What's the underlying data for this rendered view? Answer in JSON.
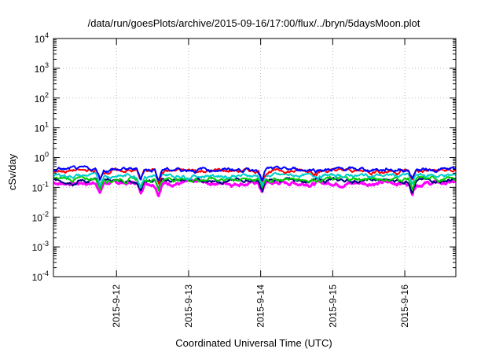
{
  "chart_data": {
    "type": "line",
    "title": "/data/run/goesPlots/archive/2015-09-16/17:00/flux/../bryn/5daysMoon.plot",
    "xlabel": "Coordinated Universal Time (UTC)",
    "ylabel": "cSv/day",
    "yscale": "log",
    "ylim": [
      0.0001,
      10000
    ],
    "xlim": [
      "2015-09-11 03:00",
      "2015-09-16 17:00"
    ],
    "x_ticks": [
      "2015-9-12",
      "2015-9-13",
      "2015-9-14",
      "2015-9-15",
      "2015-9-16"
    ],
    "y_ticks": [
      {
        "base": "10",
        "exp": "4"
      },
      {
        "base": "10",
        "exp": "3"
      },
      {
        "base": "10",
        "exp": "2"
      },
      {
        "base": "10",
        "exp": "1"
      },
      {
        "base": "10",
        "exp": "0"
      },
      {
        "base": "10",
        "exp": "-1"
      },
      {
        "base": "10",
        "exp": "-2"
      },
      {
        "base": "10",
        "exp": "-3"
      },
      {
        "base": "10",
        "exp": "-4"
      }
    ],
    "grid": true,
    "dips_at": [
      "2015-09-11 18:30",
      "2015-09-12 08:00",
      "2015-09-12 14:00",
      "2015-09-14 00:30",
      "2015-09-16 02:30"
    ],
    "series": [
      {
        "color": "#0000ff",
        "level": 0.4
      },
      {
        "color": "#ff0000",
        "level": 0.36
      },
      {
        "color": "#00cccc",
        "level": 0.25
      },
      {
        "color": "#00cc00",
        "level": 0.19
      },
      {
        "color": "#000080",
        "level": 0.17
      },
      {
        "color": "#ff00ff",
        "level": 0.14
      }
    ]
  }
}
